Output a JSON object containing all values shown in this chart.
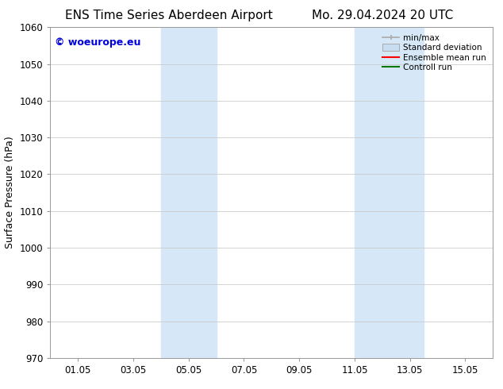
{
  "title_left": "ENS Time Series Aberdeen Airport",
  "title_right": "Mo. 29.04.2024 20 UTC",
  "ylabel": "Surface Pressure (hPa)",
  "ylim": [
    970,
    1060
  ],
  "yticks": [
    970,
    980,
    990,
    1000,
    1010,
    1020,
    1030,
    1040,
    1050,
    1060
  ],
  "xtick_labels": [
    "01.05",
    "03.05",
    "05.05",
    "07.05",
    "09.05",
    "11.05",
    "13.05",
    "15.05"
  ],
  "xtick_positions": [
    1,
    3,
    5,
    7,
    9,
    11,
    13,
    15
  ],
  "xmin": 0,
  "xmax": 16,
  "shaded_bands": [
    {
      "xmin": 4.0,
      "xmax": 6.0,
      "color": "#d6e8f7"
    },
    {
      "xmin": 11.0,
      "xmax": 13.5,
      "color": "#d6e8f7"
    }
  ],
  "watermark_text": "© woeurope.eu",
  "watermark_color": "#0000dd",
  "bg_color": "#ffffff",
  "plot_bg_color": "#ffffff",
  "grid_color": "#cccccc",
  "legend_items": [
    {
      "label": "min/max",
      "color": "#aaaaaa",
      "lw": 1.2,
      "style": "errorbar"
    },
    {
      "label": "Standard deviation",
      "color": "#c8ddef",
      "style": "box"
    },
    {
      "label": "Ensemble mean run",
      "color": "#ff0000",
      "lw": 1.5,
      "style": "line"
    },
    {
      "label": "Controll run",
      "color": "#007700",
      "lw": 1.5,
      "style": "line"
    }
  ],
  "title_fontsize": 11,
  "tick_fontsize": 8.5,
  "ylabel_fontsize": 9,
  "watermark_fontsize": 9
}
